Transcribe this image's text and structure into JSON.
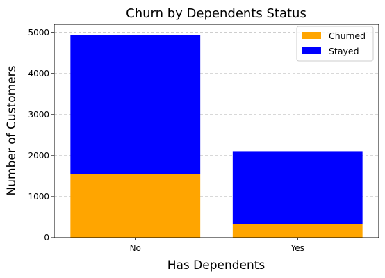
{
  "chart_data": {
    "type": "bar",
    "stacked": true,
    "title": "Churn by Dependents Status",
    "xlabel": "Has Dependents",
    "ylabel": "Number of Customers",
    "categories": [
      "No",
      "Yes"
    ],
    "series": [
      {
        "name": "Churned",
        "values": [
          1543,
          326
        ],
        "color": "#FFA500"
      },
      {
        "name": "Stayed",
        "values": [
          3390,
          1784
        ],
        "color": "#0000FF"
      }
    ],
    "ylim": [
      0,
      5200
    ],
    "yticks": [
      0,
      1000,
      2000,
      3000,
      4000,
      5000
    ],
    "grid": "y-dashed",
    "legend_position": "top-right"
  }
}
